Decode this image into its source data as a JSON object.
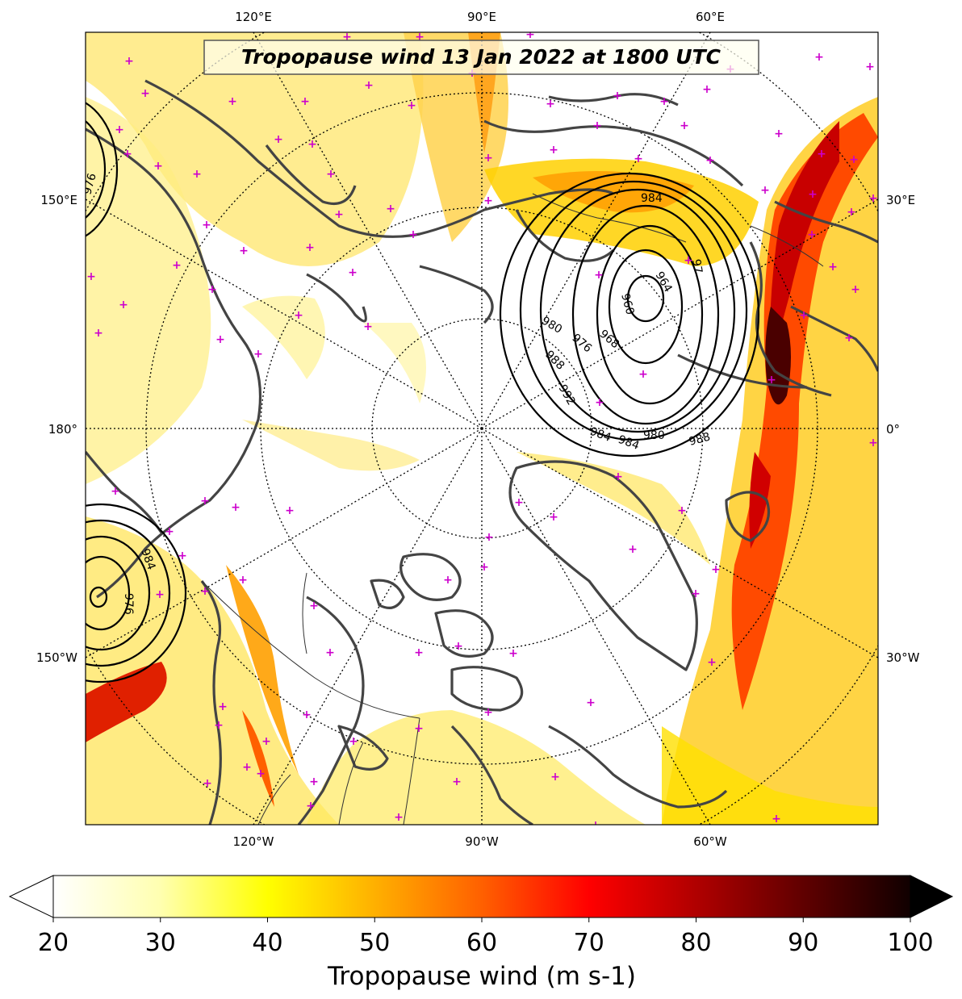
{
  "title": "Tropopause wind 13 Jan 2022 at 1800 UTC",
  "lon_labels": {
    "top": [
      "120°E",
      "90°E",
      "60°E"
    ],
    "bottom": [
      "120°W",
      "90°W",
      "60°W"
    ],
    "left": [
      "150°E",
      "180°",
      "150°W"
    ],
    "right": [
      "30°E",
      "0°",
      "30°W"
    ]
  },
  "contour_labels": [
    "984",
    "964",
    "960",
    "968",
    "976",
    "980",
    "988",
    "992",
    "984",
    "980",
    "988",
    "984",
    "976",
    "984",
    "976",
    "97"
  ],
  "colorbar": {
    "label": "Tropopause wind (m s-1)",
    "ticks": [
      "20",
      "30",
      "40",
      "50",
      "60",
      "70",
      "80",
      "90",
      "100"
    ],
    "extend": "both",
    "cmap": "hot_r"
  },
  "colors": {
    "coast": "#444444",
    "marker": "#cc00cc",
    "contour": "#000000"
  }
}
